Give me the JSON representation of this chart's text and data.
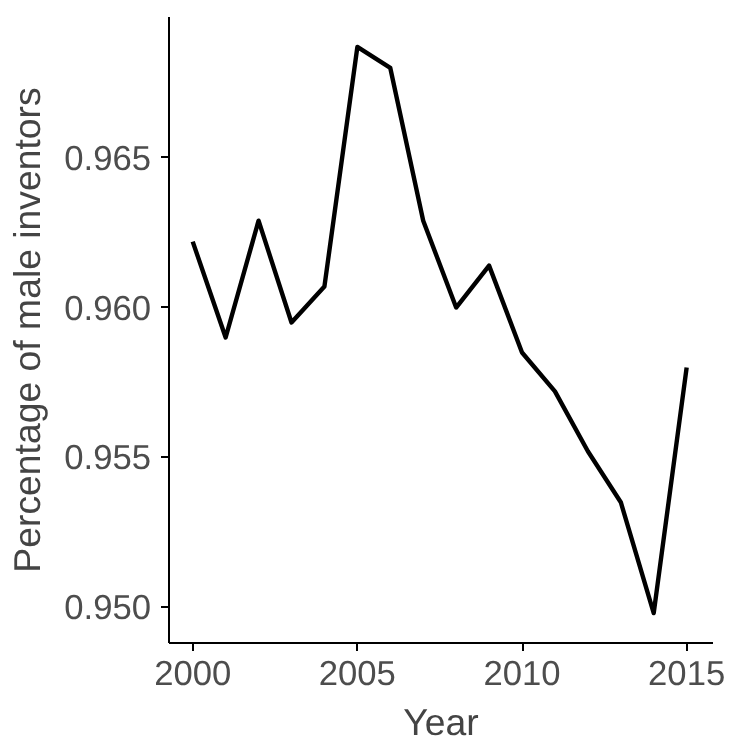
{
  "chart_data": {
    "type": "line",
    "xlabel": "Year",
    "ylabel": "Percentage of male inventors",
    "x": [
      2000,
      2001,
      2002,
      2003,
      2004,
      2005,
      2006,
      2007,
      2008,
      2009,
      2010,
      2011,
      2012,
      2013,
      2014,
      2015
    ],
    "series": [
      {
        "color": "#000000",
        "values": [
          0.9622,
          0.959,
          0.9629,
          0.9595,
          0.9607,
          0.9687,
          0.968,
          0.9629,
          0.96,
          0.9614,
          0.9585,
          0.9572,
          0.9552,
          0.9535,
          0.9498,
          0.958
        ]
      }
    ],
    "xlim": [
      1999.28,
      2015.8
    ],
    "ylim": [
      0.9488,
      0.9697
    ],
    "xticks": [
      2000,
      2005,
      2010,
      2015
    ],
    "yticks": [
      {
        "value": 0.95,
        "label": "0.950"
      },
      {
        "value": 0.955,
        "label": "0.955"
      },
      {
        "value": 0.96,
        "label": "0.960"
      },
      {
        "value": 0.965,
        "label": "0.965"
      }
    ],
    "grid": false,
    "line_style": "solid"
  }
}
